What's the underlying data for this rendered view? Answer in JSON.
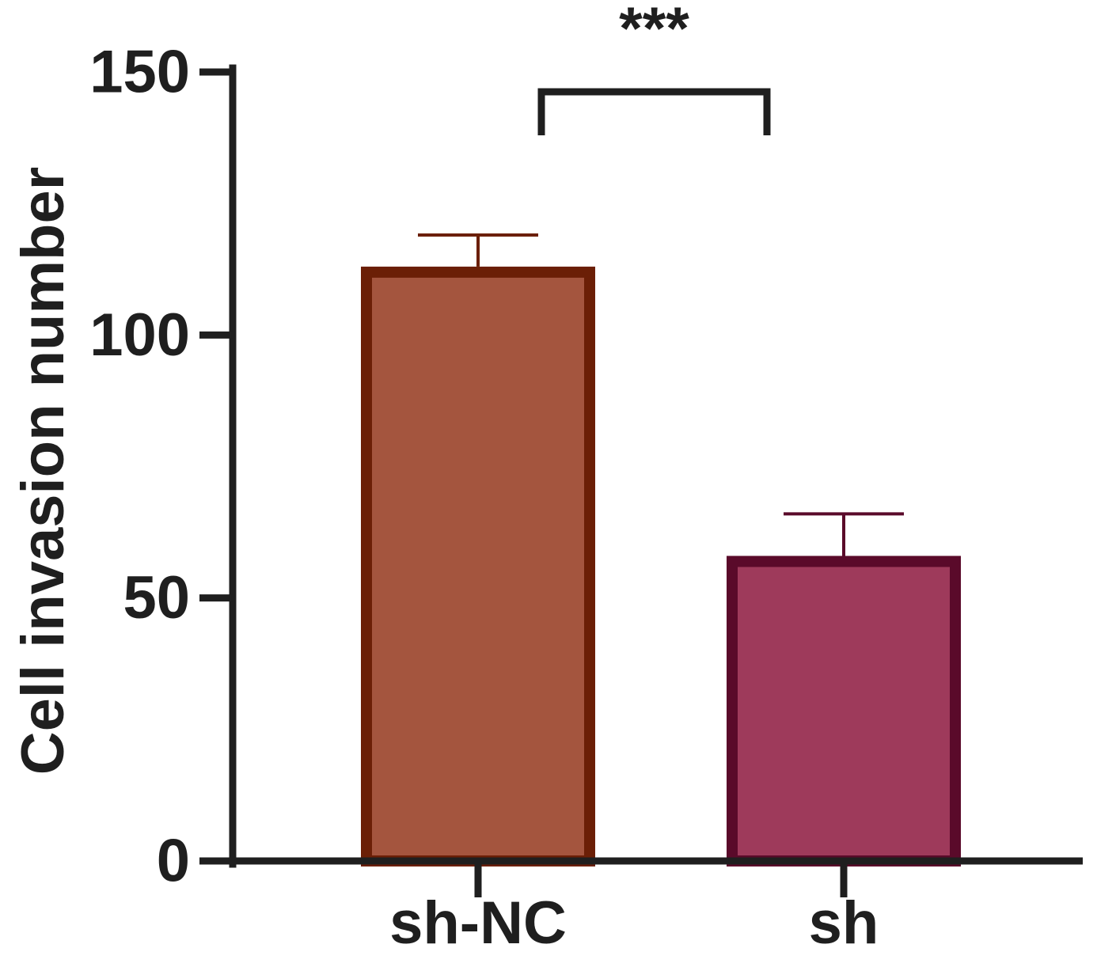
{
  "chart_data": {
    "type": "bar",
    "ylabel": "Cell invasion number",
    "xlabel": "",
    "ylim": [
      0,
      150
    ],
    "yticks": [
      0,
      50,
      100,
      150
    ],
    "categories": [
      "sh-NC",
      "sh"
    ],
    "values": [
      113,
      58
    ],
    "errors": [
      6,
      8
    ],
    "significance": {
      "label": "***",
      "between": [
        "sh-NC",
        "sh"
      ]
    },
    "colors": {
      "fills": [
        "#A4553E",
        "#9E3A5B"
      ],
      "edges": [
        "#6B1F06",
        "#5A0A2A"
      ],
      "axis": "#1f1f1f"
    }
  }
}
